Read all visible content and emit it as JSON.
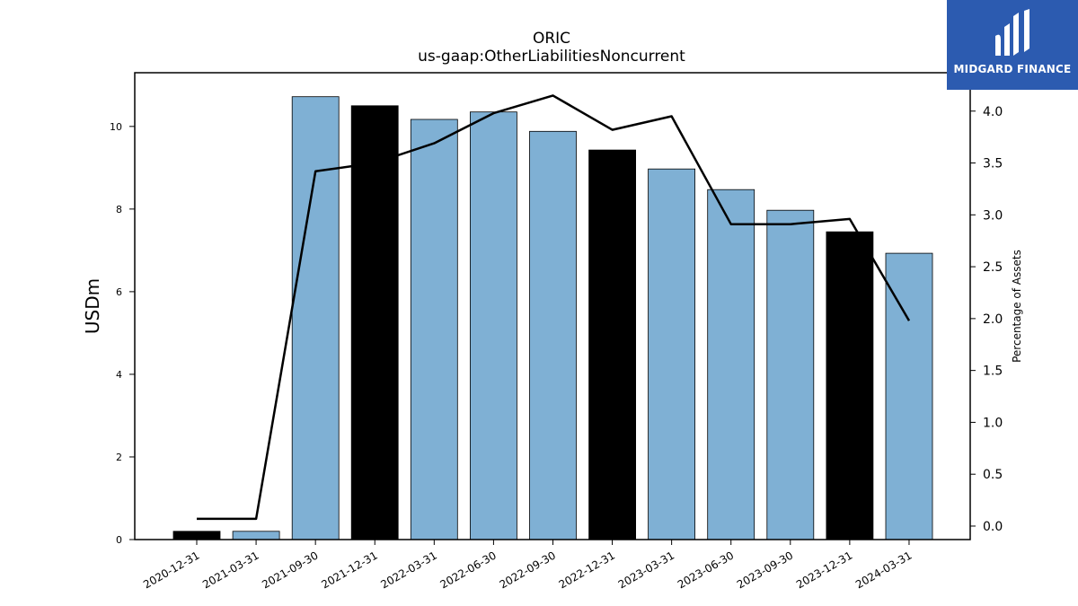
{
  "brand": {
    "name": "MIDGARD FINANCE",
    "bg_color": "#2c5bb0"
  },
  "chart_data": {
    "type": "bar",
    "title": "ORIC",
    "subtitle": "us-gaap:OtherLiabilitiesNoncurrent",
    "ylabel": "USDm",
    "y2label": "Percentage of Assets",
    "categories": [
      "2020-12-31",
      "2021-03-31",
      "2021-09-30",
      "2021-12-31",
      "2022-03-31",
      "2022-06-30",
      "2022-09-30",
      "2022-12-31",
      "2023-03-31",
      "2023-06-30",
      "2023-09-30",
      "2023-12-31",
      "2024-03-31"
    ],
    "values": [
      0.2,
      0.2,
      10.72,
      10.5,
      10.17,
      10.35,
      9.88,
      9.43,
      8.97,
      8.47,
      7.97,
      7.45,
      6.93
    ],
    "bar_colors": [
      "#000000",
      "#7fb0d4",
      "#7fb0d4",
      "#000000",
      "#7fb0d4",
      "#7fb0d4",
      "#7fb0d4",
      "#000000",
      "#7fb0d4",
      "#7fb0d4",
      "#7fb0d4",
      "#000000",
      "#7fb0d4"
    ],
    "line_values": [
      0.07,
      0.07,
      3.42,
      3.5,
      3.69,
      3.98,
      4.15,
      3.82,
      3.95,
      2.91,
      2.91,
      2.96,
      1.98
    ],
    "ylim": [
      0,
      11.3
    ],
    "y2lim": [
      -0.13,
      4.37
    ],
    "yticks": [
      0,
      2,
      4,
      6,
      8,
      10
    ],
    "y2ticks": [
      "0.0",
      "0.5",
      "1.0",
      "1.5",
      "2.0",
      "2.5",
      "3.0",
      "3.5",
      "4.0"
    ],
    "grid": false,
    "colors": {
      "highlight": "#000000",
      "bar": "#7fb0d4",
      "line": "#000000"
    }
  }
}
